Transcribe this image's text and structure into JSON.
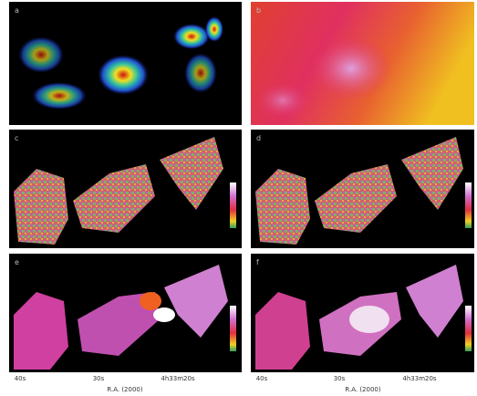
{
  "panels": [
    {
      "label": "a"
    },
    {
      "label": "b"
    },
    {
      "label": "c"
    },
    {
      "label": "d"
    },
    {
      "label": "e"
    },
    {
      "label": "f"
    }
  ],
  "x_axes": [
    {
      "ticks": [
        "40s",
        "30s",
        "4h33m20s"
      ],
      "label": "R.A. (2000)"
    },
    {
      "ticks": [
        "40s",
        "30s",
        "4h33m20s"
      ],
      "label": "R.A. (2000)"
    }
  ]
}
